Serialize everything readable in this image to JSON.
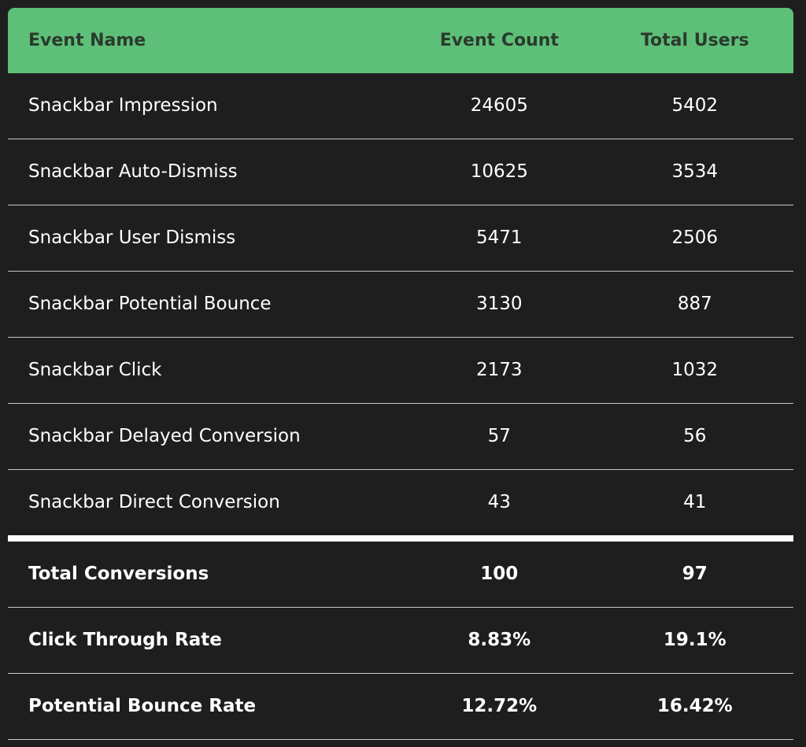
{
  "header": {
    "event_name": "Event Name",
    "event_count": "Event Count",
    "total_users": "Total Users"
  },
  "events": [
    {
      "name": "Snackbar Impression",
      "count": "24605",
      "users": "5402"
    },
    {
      "name": "Snackbar Auto-Dismiss",
      "count": "10625",
      "users": "3534"
    },
    {
      "name": "Snackbar User Dismiss",
      "count": "5471",
      "users": "2506"
    },
    {
      "name": "Snackbar Potential Bounce",
      "count": "3130",
      "users": "887"
    },
    {
      "name": "Snackbar Click",
      "count": "2173",
      "users": "1032"
    },
    {
      "name": "Snackbar Delayed Conversion",
      "count": "57",
      "users": "56"
    },
    {
      "name": "Snackbar Direct Conversion",
      "count": "43",
      "users": "41"
    }
  ],
  "summary": [
    {
      "name": "Total Conversions",
      "count": "100",
      "users": "97"
    },
    {
      "name": "Click Through Rate",
      "count": "8.83%",
      "users": "19.1%"
    },
    {
      "name": "Potential Bounce Rate",
      "count": "12.72%",
      "users": "16.42%"
    }
  ],
  "colors": {
    "header_bg": "#5ec078",
    "header_text": "#2b3a2e",
    "page_bg": "#1e1e1e",
    "text": "#ffffff"
  }
}
